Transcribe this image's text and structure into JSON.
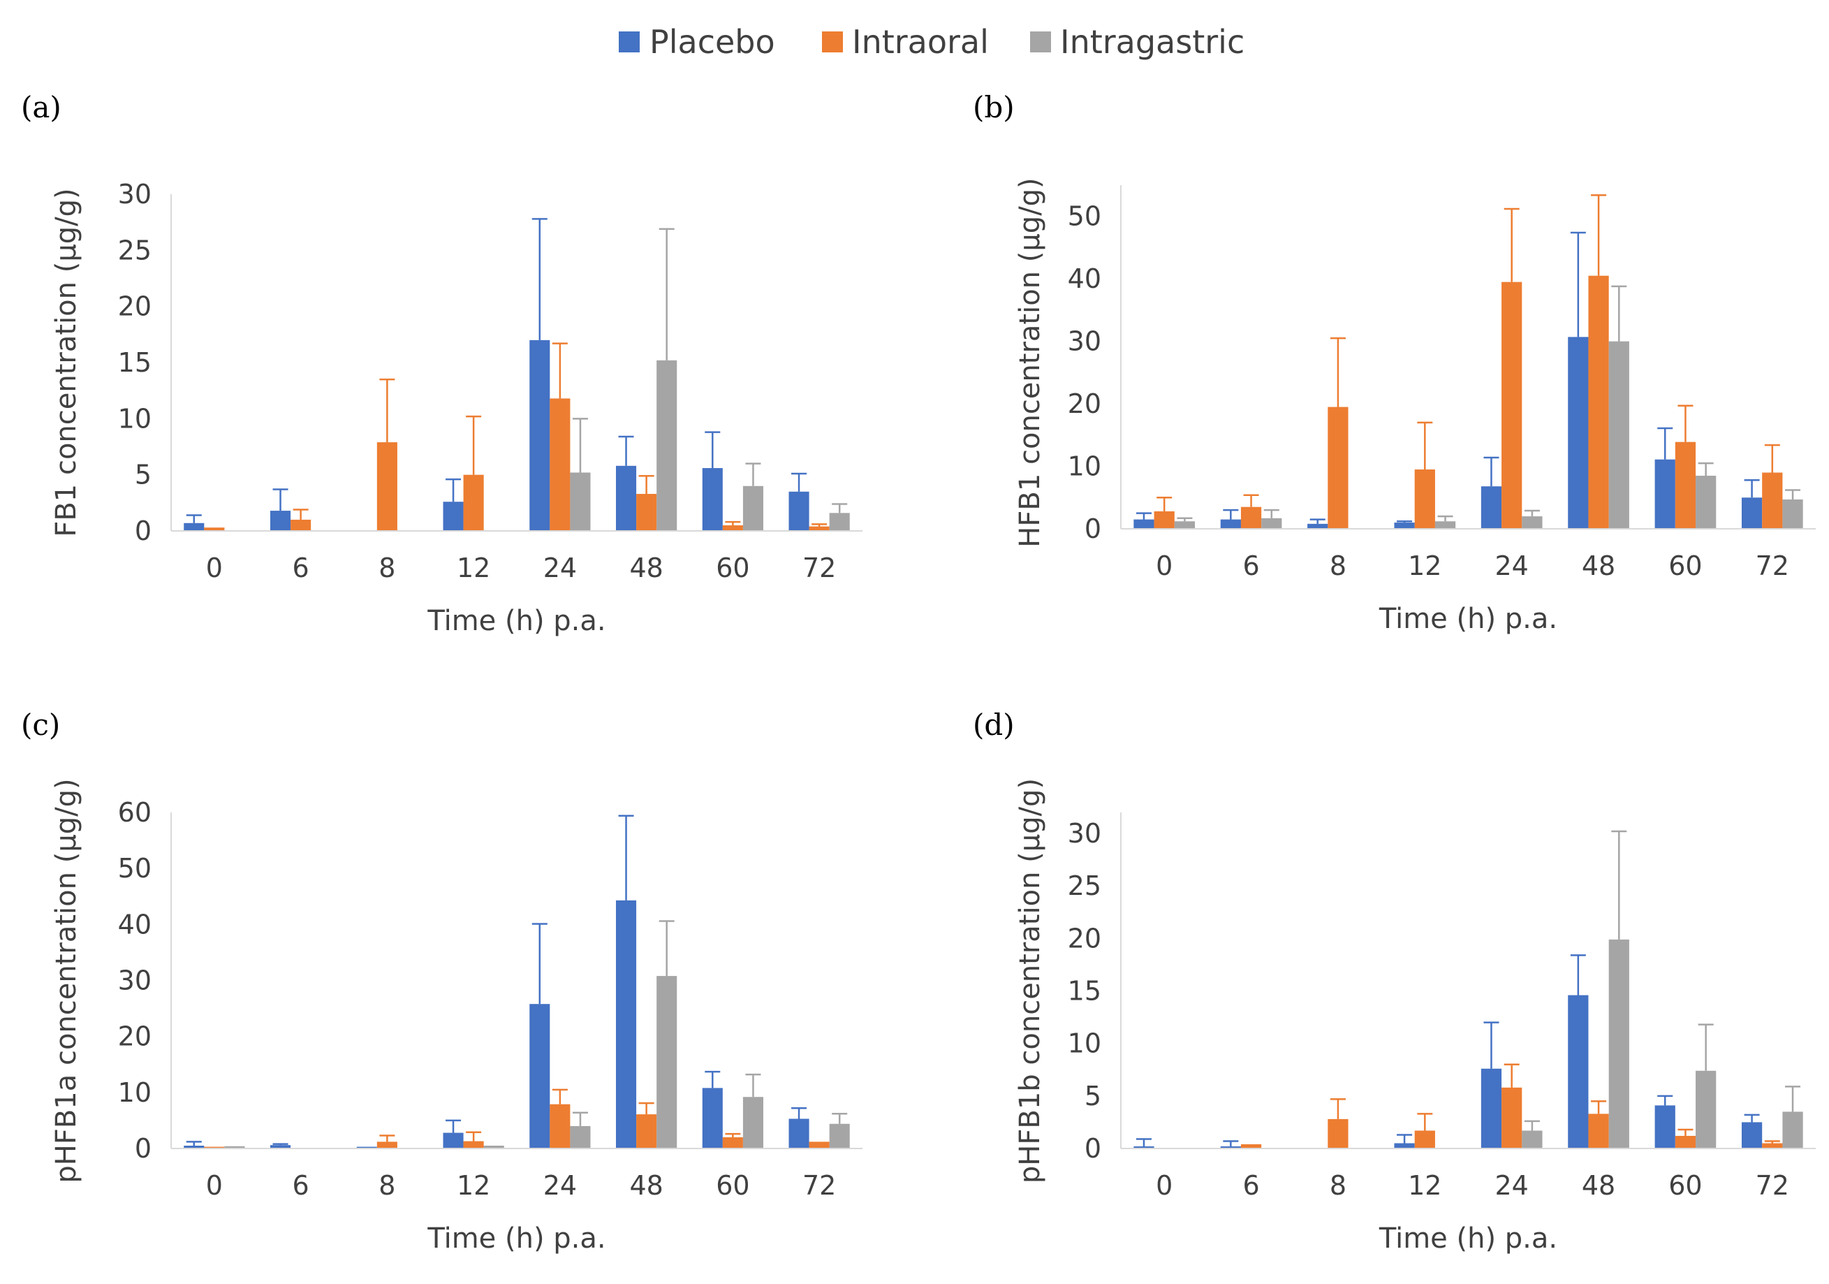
{
  "legend": [
    {
      "name": "Placebo",
      "color": "#4472C4"
    },
    {
      "name": "Intraoral",
      "color": "#ED7D31"
    },
    {
      "name": "Intragastric",
      "color": "#A5A5A5"
    }
  ],
  "chart_data": [
    {
      "type": "bar",
      "label": "(a)",
      "categories": [
        "0",
        "6",
        "8",
        "12",
        "24",
        "48",
        "60",
        "72"
      ],
      "xlabel": "Time (h) p.a.",
      "ylabel": "FB1 concentration (µg/g)",
      "ylim": [
        0,
        30
      ],
      "yticks": [
        0,
        5,
        10,
        15,
        20,
        25,
        30
      ],
      "series": [
        {
          "name": "Placebo",
          "values": [
            0.7,
            1.8,
            0,
            2.6,
            17.0,
            5.8,
            5.6,
            3.5
          ],
          "errors": [
            0.7,
            1.9,
            0,
            2.0,
            10.8,
            2.6,
            3.2,
            1.6
          ]
        },
        {
          "name": "Intraoral",
          "values": [
            0.3,
            1.0,
            7.9,
            5.0,
            11.8,
            3.3,
            0.5,
            0.4
          ],
          "errors": [
            0,
            0.9,
            5.6,
            5.2,
            4.9,
            1.6,
            0.3,
            0.2
          ]
        },
        {
          "name": "Intragastric",
          "values": [
            0,
            0,
            0,
            0,
            5.2,
            15.2,
            4.0,
            1.6
          ],
          "errors": [
            0,
            0,
            0,
            0,
            4.8,
            11.7,
            2.0,
            0.8
          ]
        }
      ]
    },
    {
      "type": "bar",
      "label": "(b)",
      "categories": [
        "0",
        "6",
        "8",
        "12",
        "24",
        "48",
        "60",
        "72"
      ],
      "xlabel": "Time (h) p.a.",
      "ylabel": "HFB1 concentration (µg/g)",
      "ylim": [
        0,
        55
      ],
      "yticks": [
        0,
        10,
        20,
        30,
        40,
        50
      ],
      "series": [
        {
          "name": "Placebo",
          "values": [
            1.5,
            1.5,
            0.8,
            1.0,
            6.8,
            30.7,
            11.1,
            5.0
          ],
          "errors": [
            1.0,
            1.5,
            0.7,
            0.2,
            4.6,
            16.7,
            5.0,
            2.8
          ]
        },
        {
          "name": "Intraoral",
          "values": [
            2.8,
            3.5,
            19.5,
            9.5,
            39.5,
            40.5,
            13.9,
            9.0
          ],
          "errors": [
            2.2,
            1.9,
            11.0,
            7.5,
            11.7,
            12.9,
            5.8,
            4.4
          ]
        },
        {
          "name": "Intragastric",
          "values": [
            1.2,
            1.7,
            0,
            1.2,
            2.0,
            30.0,
            8.5,
            4.7
          ],
          "errors": [
            0.5,
            1.3,
            0,
            0.8,
            0.9,
            8.8,
            2.0,
            1.5
          ]
        }
      ]
    },
    {
      "type": "bar",
      "label": "(c)",
      "categories": [
        "0",
        "6",
        "8",
        "12",
        "24",
        "48",
        "60",
        "72"
      ],
      "xlabel": "Time (h) p.a.",
      "ylabel": "pHFB1a concentration (µg/g)",
      "ylim": [
        0,
        60
      ],
      "yticks": [
        0,
        10,
        20,
        30,
        40,
        50,
        60
      ],
      "series": [
        {
          "name": "Placebo",
          "values": [
            0.5,
            0.6,
            0.3,
            2.8,
            25.8,
            44.3,
            10.8,
            5.3
          ],
          "errors": [
            0.7,
            0.2,
            0,
            2.2,
            14.3,
            15.1,
            2.9,
            1.9
          ]
        },
        {
          "name": "Intraoral",
          "values": [
            0.3,
            0,
            1.2,
            1.3,
            7.9,
            6.1,
            2.0,
            1.2
          ],
          "errors": [
            0,
            0,
            1.1,
            1.6,
            2.6,
            2.0,
            0.6,
            0
          ]
        },
        {
          "name": "Intragastric",
          "values": [
            0.4,
            0,
            0,
            0.5,
            4.0,
            30.8,
            9.2,
            4.4
          ],
          "errors": [
            0,
            0,
            0,
            0,
            2.4,
            9.8,
            4.0,
            1.8
          ]
        }
      ]
    },
    {
      "type": "bar",
      "label": "(d)",
      "categories": [
        "0",
        "6",
        "8",
        "12",
        "24",
        "48",
        "60",
        "72"
      ],
      "xlabel": "Time (h) p.a.",
      "ylabel": "pHFB1b concentration (µg/g)",
      "ylim": [
        0,
        32
      ],
      "yticks": [
        0,
        5,
        10,
        15,
        20,
        25,
        30
      ],
      "series": [
        {
          "name": "Placebo",
          "values": [
            0.2,
            0.2,
            0,
            0.5,
            7.6,
            14.6,
            4.1,
            2.5
          ],
          "errors": [
            0.7,
            0.5,
            0,
            0.8,
            4.4,
            3.8,
            0.9,
            0.7
          ]
        },
        {
          "name": "Intraoral",
          "values": [
            0,
            0.4,
            2.8,
            1.7,
            5.8,
            3.3,
            1.2,
            0.5
          ],
          "errors": [
            0,
            0,
            1.9,
            1.6,
            2.2,
            1.2,
            0.6,
            0.2
          ]
        },
        {
          "name": "Intragastric",
          "values": [
            0,
            0,
            0,
            0,
            1.7,
            19.9,
            7.4,
            3.5
          ],
          "errors": [
            0,
            0,
            0,
            0,
            0.9,
            10.3,
            4.4,
            2.4
          ]
        }
      ]
    }
  ]
}
